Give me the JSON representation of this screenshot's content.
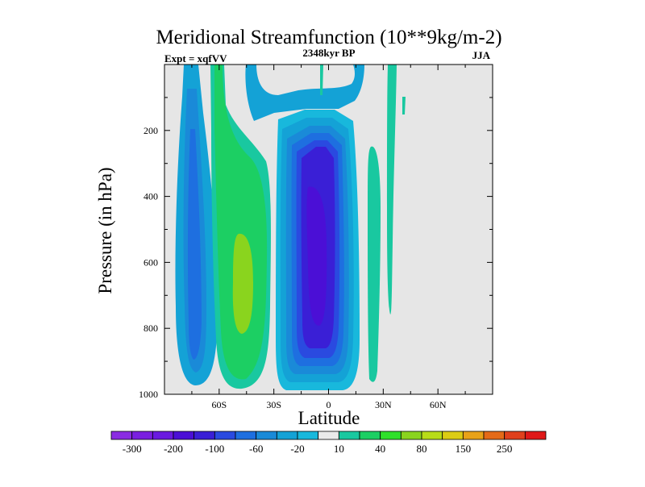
{
  "chart_data": {
    "type": "heatmap",
    "title": "Meridional Streamfunction (10**9kg/m-2)",
    "subtitle_left": "Expt = xqfVV",
    "subtitle_center": "2348kyr BP",
    "subtitle_right": "JJA",
    "xlabel": "Latitude",
    "ylabel": "Pressure (in hPa)",
    "xlim": [
      -90,
      90
    ],
    "ylim": [
      1000,
      0
    ],
    "x_ticks": [
      {
        "lat": -60,
        "label": "60S"
      },
      {
        "lat": -30,
        "label": "30S"
      },
      {
        "lat": 0,
        "label": "0"
      },
      {
        "lat": 30,
        "label": "30N"
      },
      {
        "lat": 60,
        "label": "60N"
      }
    ],
    "y_ticks": [
      {
        "p": 200,
        "label": "200"
      },
      {
        "p": 400,
        "label": "400"
      },
      {
        "p": 600,
        "label": "600"
      },
      {
        "p": 800,
        "label": "800"
      },
      {
        "p": 1000,
        "label": "1000"
      }
    ],
    "colorbar": {
      "levels": [
        -300,
        -250,
        -200,
        -150,
        -100,
        -80,
        -60,
        -40,
        -20,
        -10,
        10,
        20,
        40,
        60,
        80,
        100,
        150,
        200,
        250,
        300
      ],
      "tick_labels": [
        "-300",
        "-200",
        "-100",
        "-60",
        "-20",
        "10",
        "40",
        "80",
        "150",
        "250"
      ],
      "colors": [
        "#8a2be2",
        "#7a1fe0",
        "#6a1ae0",
        "#4b0fd6",
        "#3a1fd6",
        "#2a4ae0",
        "#1e6fe0",
        "#1a8ad8",
        "#14a2d6",
        "#18b8dc",
        "#eaeaea",
        "#19c8a0",
        "#1ccf63",
        "#2fe02a",
        "#8ad41e",
        "#b8dc18",
        "#dccc14",
        "#e8a218",
        "#e46a18",
        "#e0401c",
        "#e01818"
      ]
    },
    "background_color": "#e6e6e6",
    "features": [
      {
        "name": "southern-cell",
        "sign": "negative",
        "center_lat": -72,
        "center_p": 650,
        "peak_value": -60
      },
      {
        "name": "ferrel-cell-south",
        "sign": "positive",
        "center_lat": -45,
        "center_p": 650,
        "peak_value": 80
      },
      {
        "name": "hadley-cell-winter",
        "sign": "negative",
        "center_lat": -4,
        "center_p": 600,
        "peak_value": -200
      },
      {
        "name": "northern-weak-cell",
        "sign": "positive",
        "center_lat": 27,
        "center_p": 650,
        "peak_value": 10
      }
    ]
  }
}
